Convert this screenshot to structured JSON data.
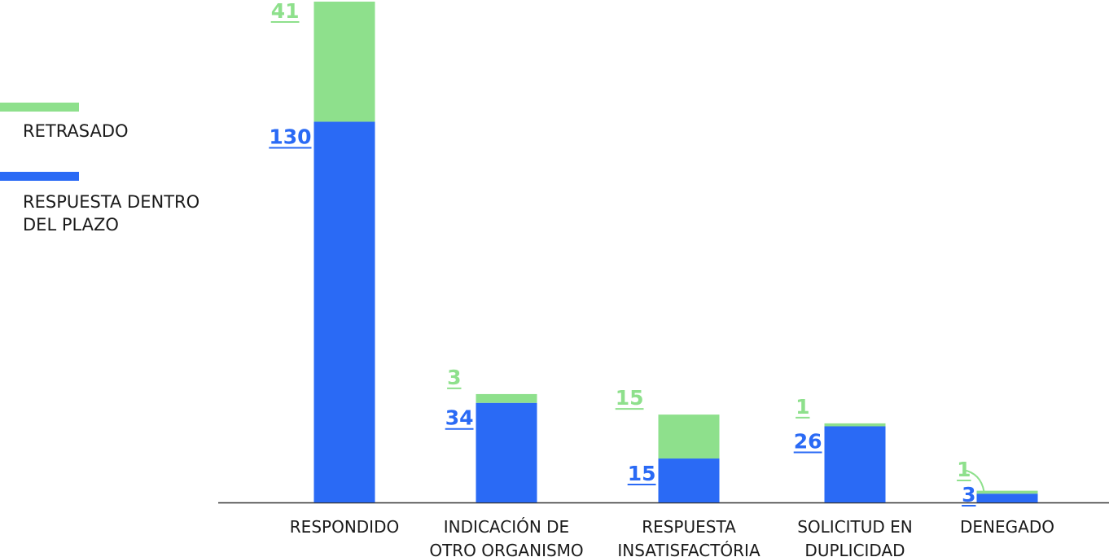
{
  "colors": {
    "retrasado": "#8ee08c",
    "dentro_plazo": "#2a6af5",
    "axis": "#333333",
    "text": "#1a1a1a"
  },
  "legend": {
    "retrasado": "RETRASADO",
    "dentro_plazo_line1": "RESPUESTA DENTRO",
    "dentro_plazo_line2": "DEL PLAZO"
  },
  "chart_data": {
    "type": "bar",
    "stacked": true,
    "categories": [
      [
        "RESPONDIDO"
      ],
      [
        "INDICACIÓN DE",
        "OTRO ORGANISMO"
      ],
      [
        "RESPUESTA",
        "INSATISFACTÓRIA"
      ],
      [
        "SOLICITUD EN",
        "DUPLICIDAD"
      ],
      [
        "DENEGADO"
      ]
    ],
    "series": [
      {
        "name": "RESPUESTA DENTRO DEL PLAZO",
        "color": "#2a6af5",
        "values": [
          130,
          34,
          15,
          26,
          3
        ],
        "labels": [
          "130",
          "34",
          "15",
          "26",
          "3"
        ]
      },
      {
        "name": "RETRASADO",
        "color": "#8ee08c",
        "values": [
          41,
          3,
          15,
          1,
          1
        ],
        "labels": [
          "41",
          "3",
          "15",
          "1",
          "1"
        ]
      }
    ],
    "ylim": [
      0,
      171
    ],
    "grid": false,
    "legend_position": "left"
  }
}
